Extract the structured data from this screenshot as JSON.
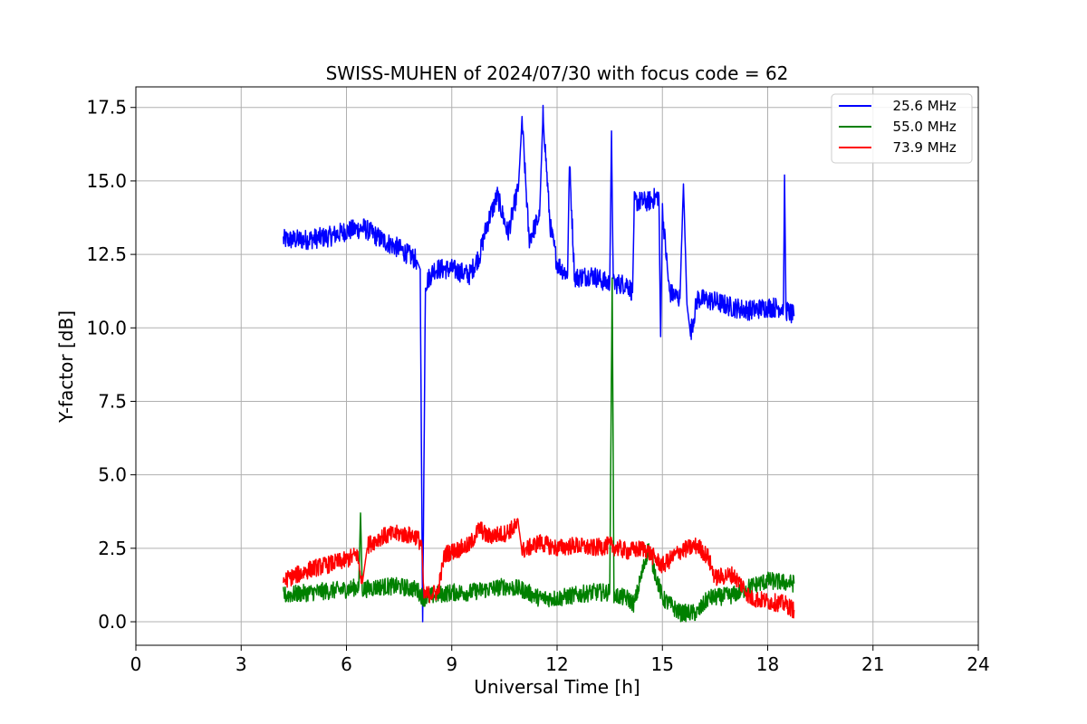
{
  "chart_data": {
    "type": "line",
    "title": "SWISS-MUHEN of 2024/07/30 with focus code = 62",
    "xlabel": "Universal Time [h]",
    "ylabel": "Y-factor [dB]",
    "xlim": [
      0,
      24
    ],
    "ylim": [
      -0.8,
      18.2
    ],
    "xticks": [
      0,
      3,
      6,
      9,
      12,
      15,
      18,
      21,
      24
    ],
    "xtick_labels": [
      "0",
      "3",
      "6",
      "9",
      "12",
      "15",
      "18",
      "21",
      "24"
    ],
    "yticks": [
      0.0,
      2.5,
      5.0,
      7.5,
      10.0,
      12.5,
      15.0,
      17.5
    ],
    "ytick_labels": [
      "0.0",
      "2.5",
      "5.0",
      "7.5",
      "10.0",
      "12.5",
      "15.0",
      "17.5"
    ],
    "grid": true,
    "legend_position": "top-right",
    "series": [
      {
        "name": "25.6 MHz",
        "legend_label": "  25.6 MHz",
        "color": "#0000ff",
        "points": [
          [
            4.2,
            13.0
          ],
          [
            4.8,
            13.0
          ],
          [
            5.5,
            13.1
          ],
          [
            6.0,
            13.3
          ],
          [
            6.5,
            13.4
          ],
          [
            7.0,
            13.0
          ],
          [
            7.5,
            12.7
          ],
          [
            8.0,
            12.3
          ],
          [
            8.1,
            12.0
          ],
          [
            8.17,
            0.0
          ],
          [
            8.25,
            11.5
          ],
          [
            8.5,
            12.0
          ],
          [
            9.0,
            12.0
          ],
          [
            9.5,
            11.8
          ],
          [
            9.8,
            12.5
          ],
          [
            10.0,
            13.5
          ],
          [
            10.3,
            14.5
          ],
          [
            10.6,
            13.2
          ],
          [
            10.9,
            14.8
          ],
          [
            11.0,
            17.1
          ],
          [
            11.2,
            13.0
          ],
          [
            11.5,
            13.8
          ],
          [
            11.6,
            17.3
          ],
          [
            11.8,
            13.5
          ],
          [
            12.0,
            12.2
          ],
          [
            12.3,
            11.8
          ],
          [
            12.35,
            15.7
          ],
          [
            12.5,
            11.7
          ],
          [
            13.0,
            11.8
          ],
          [
            13.3,
            11.6
          ],
          [
            13.5,
            11.5
          ],
          [
            13.55,
            16.7
          ],
          [
            13.6,
            11.5
          ],
          [
            14.0,
            11.5
          ],
          [
            14.15,
            11.2
          ],
          [
            14.2,
            14.3
          ],
          [
            14.6,
            14.3
          ],
          [
            14.9,
            14.5
          ],
          [
            14.95,
            9.7
          ],
          [
            15.0,
            14.0
          ],
          [
            15.2,
            11.2
          ],
          [
            15.5,
            11.0
          ],
          [
            15.6,
            14.9
          ],
          [
            15.7,
            10.8
          ],
          [
            15.8,
            9.8
          ],
          [
            16.0,
            11.0
          ],
          [
            16.5,
            10.9
          ],
          [
            17.0,
            10.7
          ],
          [
            17.5,
            10.6
          ],
          [
            18.0,
            10.7
          ],
          [
            18.45,
            10.7
          ],
          [
            18.48,
            15.2
          ],
          [
            18.52,
            10.6
          ],
          [
            18.75,
            10.4
          ]
        ]
      },
      {
        "name": "55.0 MHz",
        "legend_label": "  55.0 MHz",
        "color": "#008000",
        "points": [
          [
            4.2,
            0.9
          ],
          [
            5.0,
            1.0
          ],
          [
            6.0,
            1.1
          ],
          [
            6.35,
            1.2
          ],
          [
            6.4,
            3.7
          ],
          [
            6.45,
            1.1
          ],
          [
            7.0,
            1.2
          ],
          [
            7.5,
            1.2
          ],
          [
            8.0,
            1.1
          ],
          [
            8.2,
            0.8
          ],
          [
            8.5,
            0.9
          ],
          [
            9.0,
            1.0
          ],
          [
            9.5,
            1.0
          ],
          [
            10.0,
            1.1
          ],
          [
            10.5,
            1.2
          ],
          [
            11.0,
            1.1
          ],
          [
            11.5,
            0.8
          ],
          [
            12.0,
            0.8
          ],
          [
            12.5,
            0.9
          ],
          [
            13.0,
            1.0
          ],
          [
            13.5,
            1.0
          ],
          [
            13.57,
            11.7
          ],
          [
            13.62,
            0.9
          ],
          [
            14.0,
            0.8
          ],
          [
            14.2,
            0.6
          ],
          [
            14.6,
            2.5
          ],
          [
            15.0,
            0.8
          ],
          [
            15.5,
            0.3
          ],
          [
            16.0,
            0.3
          ],
          [
            16.3,
            0.8
          ],
          [
            17.0,
            0.9
          ],
          [
            17.5,
            1.2
          ],
          [
            18.0,
            1.4
          ],
          [
            18.75,
            1.3
          ]
        ]
      },
      {
        "name": "73.9 MHz",
        "legend_label": "  73.9 MHz",
        "color": "#ff0000",
        "points": [
          [
            4.2,
            1.4
          ],
          [
            5.0,
            1.8
          ],
          [
            6.0,
            2.1
          ],
          [
            6.3,
            2.3
          ],
          [
            6.45,
            1.3
          ],
          [
            6.6,
            2.6
          ],
          [
            7.0,
            2.9
          ],
          [
            7.5,
            3.0
          ],
          [
            8.0,
            2.9
          ],
          [
            8.15,
            2.6
          ],
          [
            8.2,
            0.9
          ],
          [
            8.6,
            1.0
          ],
          [
            8.8,
            2.3
          ],
          [
            9.5,
            2.6
          ],
          [
            9.8,
            3.2
          ],
          [
            10.0,
            2.9
          ],
          [
            10.5,
            3.0
          ],
          [
            10.9,
            3.3
          ],
          [
            11.0,
            2.4
          ],
          [
            11.5,
            2.7
          ],
          [
            12.0,
            2.5
          ],
          [
            12.5,
            2.6
          ],
          [
            13.0,
            2.5
          ],
          [
            13.5,
            2.6
          ],
          [
            14.0,
            2.4
          ],
          [
            14.5,
            2.5
          ],
          [
            15.0,
            1.9
          ],
          [
            15.5,
            2.4
          ],
          [
            16.0,
            2.6
          ],
          [
            16.3,
            2.2
          ],
          [
            16.5,
            1.5
          ],
          [
            17.0,
            1.6
          ],
          [
            17.3,
            1.2
          ],
          [
            17.5,
            0.8
          ],
          [
            18.0,
            0.7
          ],
          [
            18.5,
            0.6
          ],
          [
            18.75,
            0.4
          ]
        ]
      }
    ]
  }
}
